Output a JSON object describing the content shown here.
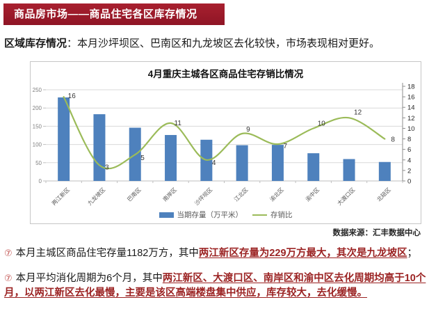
{
  "header": {
    "title": "商品房市场——商品住宅各区库存情况"
  },
  "intro": {
    "label": "区域库存情况",
    "text": "：本月沙坪坝区、巴南区和九龙坡区去化较快，市场表现相对更好。"
  },
  "chart": {
    "title": "4月重庆主城各区商品住宅存销比情况",
    "source": "数据来源：汇丰数据中心"
  },
  "chart_data": {
    "type": "bar",
    "title": "4月重庆主城各区商品住宅存销比情况",
    "categories": [
      "两江新区",
      "九龙坡区",
      "巴南区",
      "南岸区",
      "沙坪坝区",
      "江北区",
      "渝北区",
      "渝中区",
      "大渡口区",
      "北碚区"
    ],
    "series": [
      {
        "name": "当期存量（万平米）",
        "type": "bar",
        "axis": "left",
        "values": [
          229,
          183,
          146,
          126,
          113,
          98,
          99,
          76,
          60,
          52
        ]
      },
      {
        "name": "存销比",
        "type": "line",
        "axis": "right",
        "values": [
          16,
          3,
          5,
          11,
          4,
          9,
          7,
          10,
          12,
          8
        ]
      }
    ],
    "left_axis": {
      "min": 0,
      "max": 250,
      "step": 50
    },
    "right_axis": {
      "min": 0,
      "max": 18,
      "step": 2
    },
    "grid": true,
    "legend_position": "bottom"
  },
  "notes": [
    {
      "bullet": "⑦",
      "segments": [
        {
          "text": "本月主城区商品住宅存量1182万方，其中",
          "em": false
        },
        {
          "text": "两江新区存量为229万方最大，其次是九龙坡区",
          "em": true
        },
        {
          "text": "；",
          "em": false
        }
      ]
    },
    {
      "bullet": "⑦",
      "segments": [
        {
          "text": "本月平均消化周期为6个月，其中",
          "em": false
        },
        {
          "text": "两江新区、大渡口区、南岸区和渝中区去化周期均高于10个月，以两江新区去化最慢，主要是该区高端楼盘集中供应，库存较大，去化缓慢。",
          "em": true
        }
      ]
    }
  ],
  "colors": {
    "banner_bg": "#a11f2e",
    "banner_text": "#ffffff",
    "bar": "#4e81bd",
    "line": "#9bbb59",
    "emphasis_text": "#9b2323",
    "bullet": "#c0504d",
    "grid": "#d9d9d9",
    "axis": "#bfbfbf",
    "left_tick_text": "#7f7f7f",
    "right_tick_text": "#262626",
    "category_text": "#595959"
  }
}
